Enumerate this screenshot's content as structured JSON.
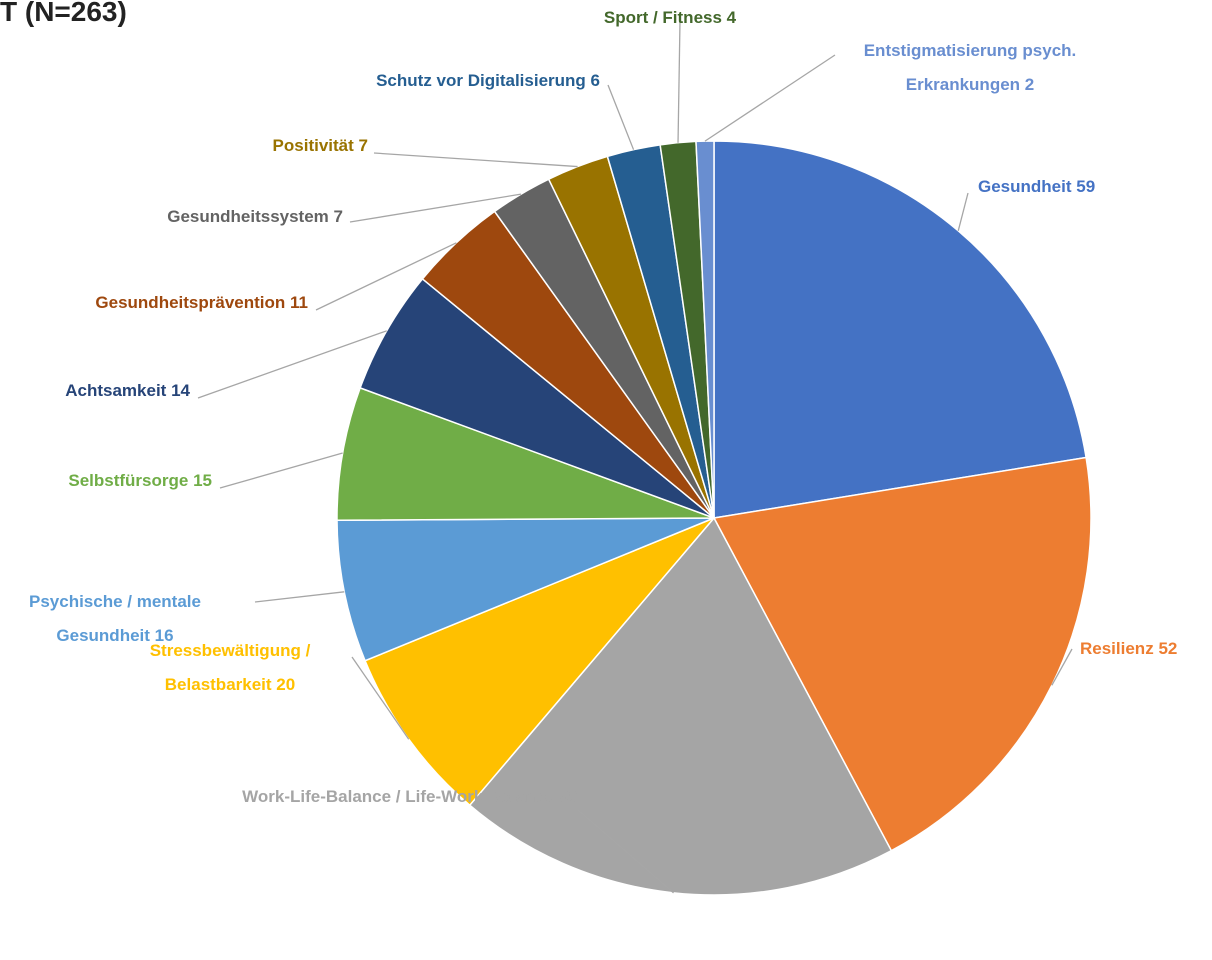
{
  "chart_data": {
    "type": "pie",
    "title": "T (N=263)",
    "categories": [
      "Gesundheit",
      "Resilienz",
      "Work-Life-Balance / Life-Work-Balance",
      "Stressbewältigung / Belastbarkeit",
      "Psychische / mentale Gesundheit",
      "Selbstfürsorge",
      "Achtsamkeit",
      "Gesundheitsprävention",
      "Gesundheitssystem",
      "Positivität",
      "Schutz vor Digitalisierung",
      "Sport / Fitness",
      "Entstigmatisierung psych. Erkrankungen"
    ],
    "values": [
      59,
      52,
      50,
      20,
      16,
      15,
      14,
      11,
      7,
      7,
      6,
      4,
      2
    ],
    "colors": [
      "#4472c4",
      "#ed7d31",
      "#a5a5a5",
      "#ffc000",
      "#5b9bd5",
      "#70ad47",
      "#264478",
      "#9e480e",
      "#636363",
      "#997300",
      "#255e91",
      "#43682b",
      "#698ed0"
    ]
  }
}
